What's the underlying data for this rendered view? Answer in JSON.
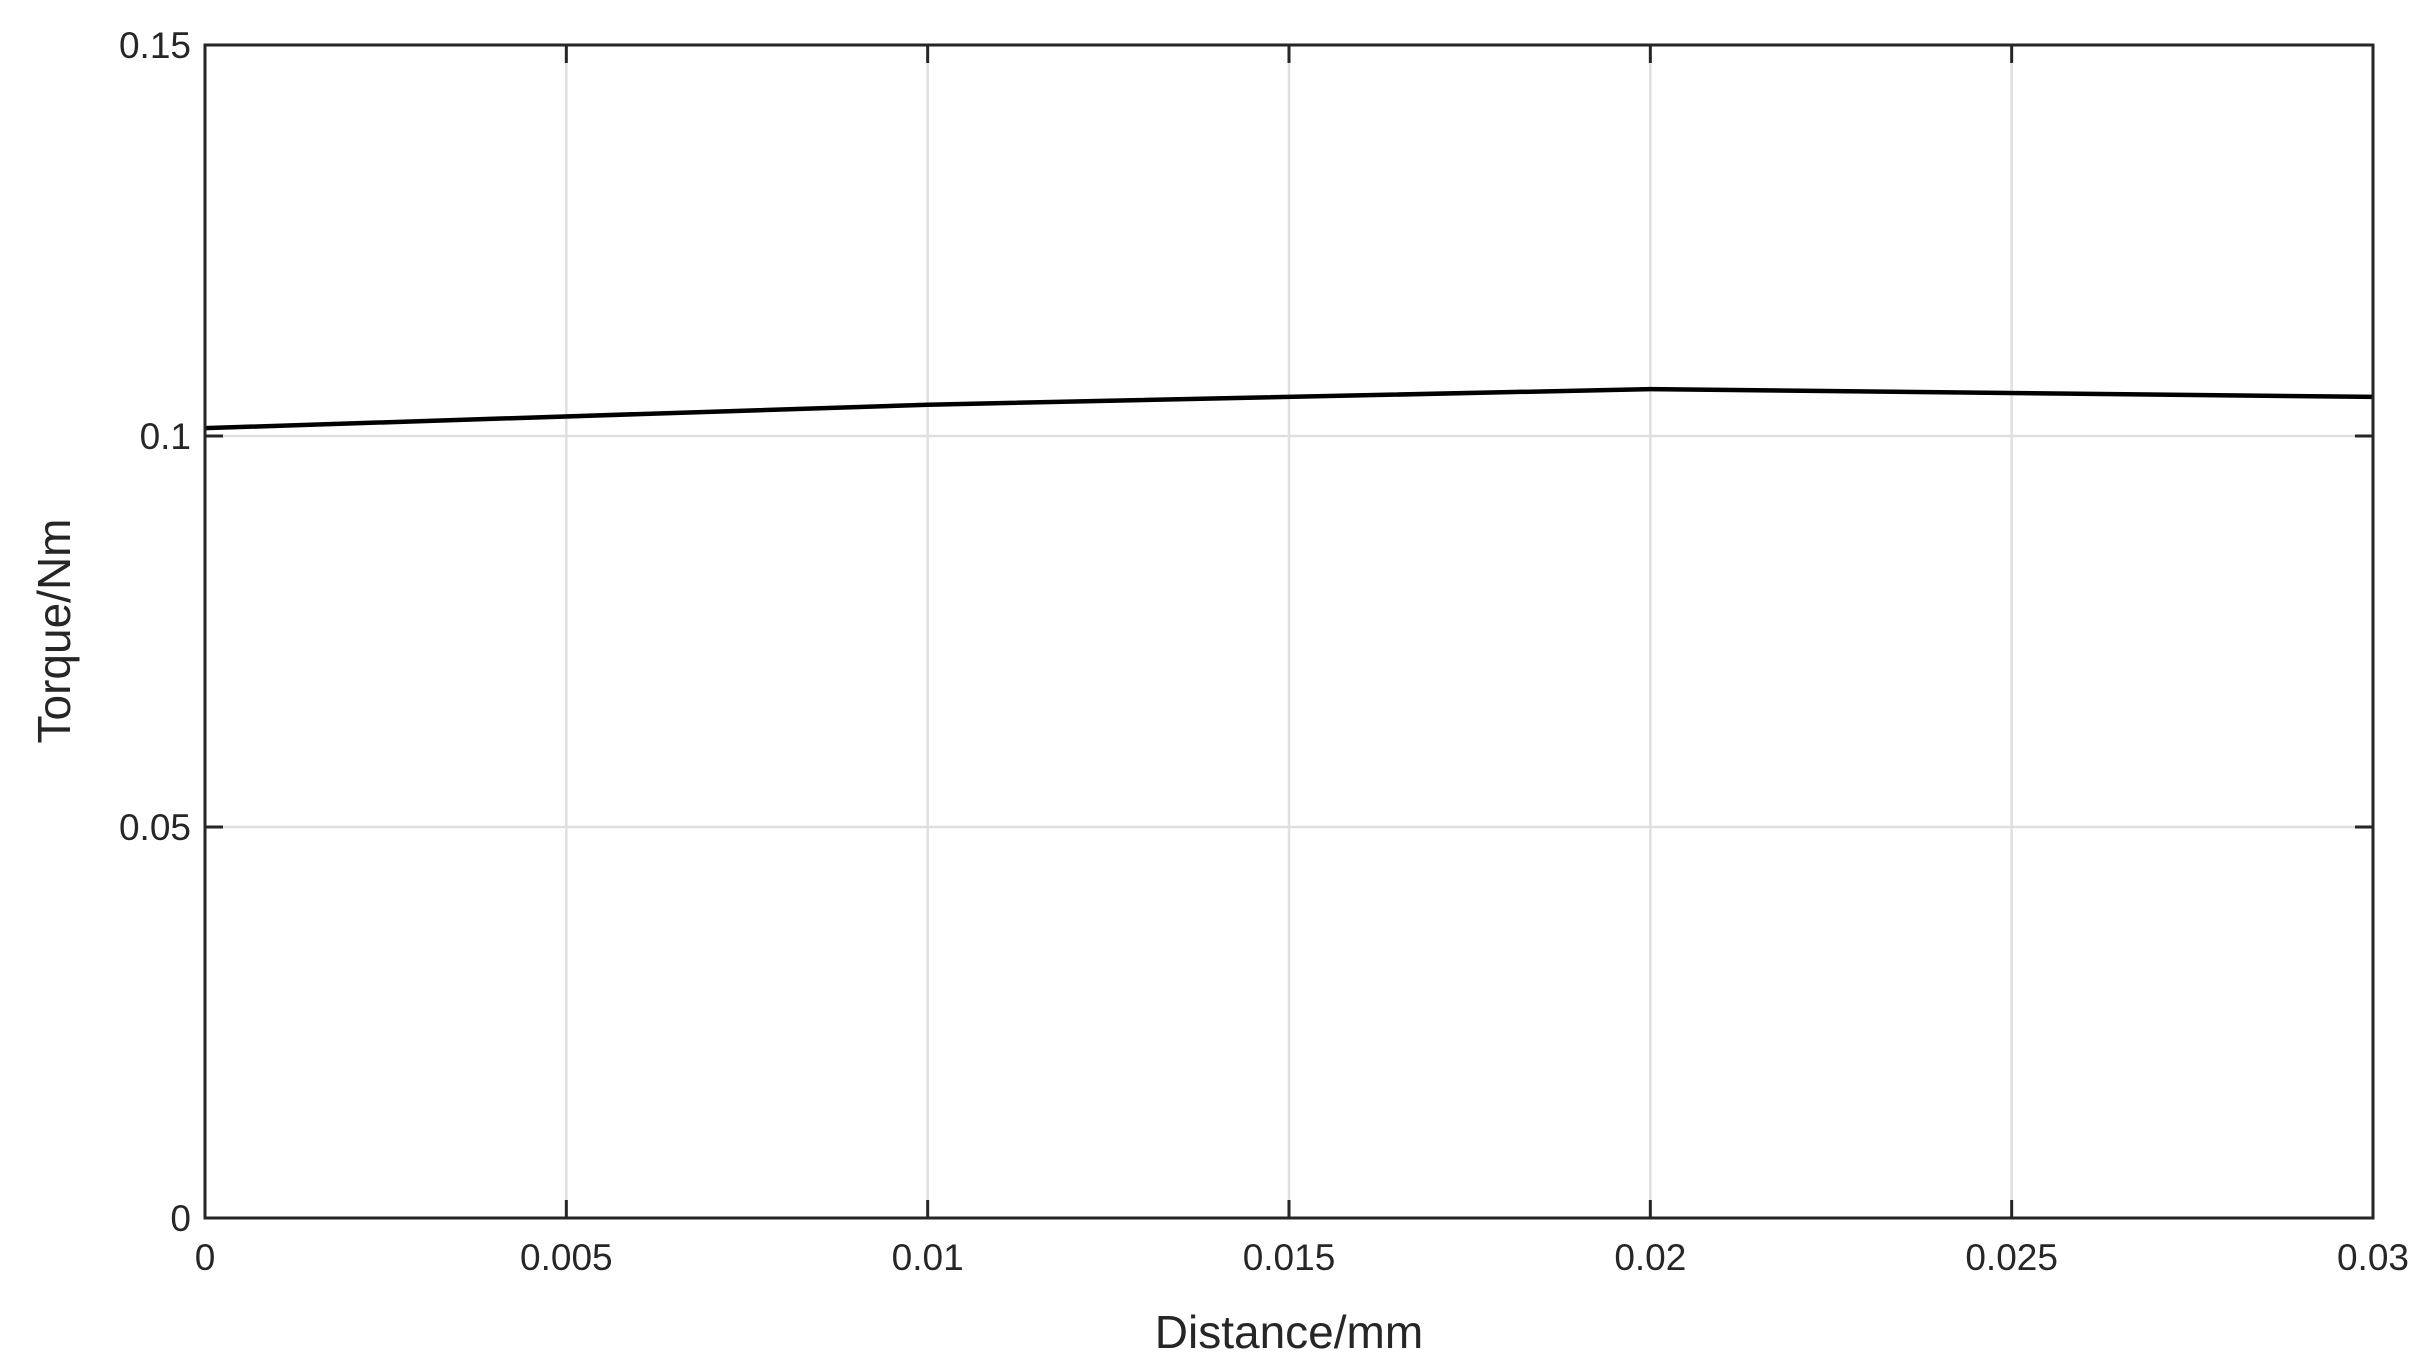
{
  "chart_data": {
    "type": "line",
    "title": "",
    "xlabel": "Distance/mm",
    "ylabel": "Torque/Nm",
    "xlim": [
      0,
      0.03
    ],
    "ylim": [
      0,
      0.15
    ],
    "xticks": [
      0,
      0.005,
      0.01,
      0.015,
      0.02,
      0.025,
      0.03
    ],
    "yticks": [
      0,
      0.05,
      0.1,
      0.15
    ],
    "xtick_labels": [
      "0",
      "0.005",
      "0.01",
      "0.015",
      "0.02",
      "0.025",
      "0.03"
    ],
    "ytick_labels": [
      "0",
      "0.05",
      "0.1",
      "0.15"
    ],
    "grid": true,
    "series": [
      {
        "x": [
          0,
          0.01,
          0.02,
          0.03
        ],
        "y": [
          0.101,
          0.104,
          0.106,
          0.105
        ],
        "color": "#000000"
      }
    ]
  }
}
